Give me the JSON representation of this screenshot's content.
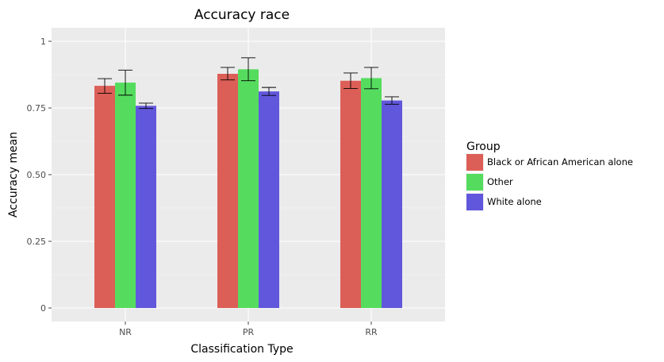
{
  "chart_data": {
    "type": "bar",
    "title": "Accuracy race",
    "xlabel": "Classification Type",
    "ylabel": "Accuracy mean",
    "categories": [
      "NR",
      "PR",
      "RR"
    ],
    "ylim": [
      0,
      1.05
    ],
    "yticks": [
      0,
      0.25,
      0.5,
      0.75,
      1
    ],
    "ytick_labels": [
      "0",
      "0.25",
      "0.50",
      "0.75",
      "1"
    ],
    "grid": true,
    "legend": {
      "title": "Group",
      "position": "right"
    },
    "series": [
      {
        "name": "Black or African American alone",
        "color": "#dc5f57",
        "values": [
          0.833,
          0.878,
          0.852
        ],
        "err_low": [
          0.805,
          0.855,
          0.823
        ],
        "err_high": [
          0.86,
          0.902,
          0.881
        ]
      },
      {
        "name": "Other",
        "color": "#55dc5f",
        "values": [
          0.845,
          0.895,
          0.862
        ],
        "err_low": [
          0.798,
          0.852,
          0.822
        ],
        "err_high": [
          0.892,
          0.938,
          0.902
        ]
      },
      {
        "name": "White alone",
        "color": "#6157dc",
        "values": [
          0.758,
          0.812,
          0.778
        ],
        "err_low": [
          0.748,
          0.797,
          0.764
        ],
        "err_high": [
          0.768,
          0.827,
          0.792
        ]
      }
    ]
  }
}
